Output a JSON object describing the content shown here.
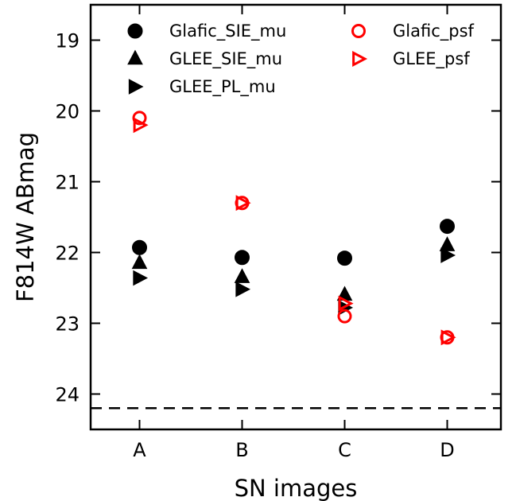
{
  "chart_data": {
    "type": "scatter",
    "xlabel": "SN images",
    "ylabel": "F814W ABmag",
    "categories": [
      "A",
      "B",
      "C",
      "D"
    ],
    "ylim": [
      24.5,
      18.5
    ],
    "y_inverted": true,
    "yticks": [
      19,
      20,
      21,
      22,
      23,
      24
    ],
    "grid": false,
    "legend_placement": "top",
    "reference_line": {
      "y": 24.2,
      "style": "dashed",
      "color": "#000000"
    },
    "series": [
      {
        "name": "Glafic_SIE_mu",
        "marker": "circle",
        "filled": true,
        "color": "#000000",
        "values": [
          21.93,
          22.07,
          22.08,
          21.63
        ]
      },
      {
        "name": "GLEE_SIE_mu",
        "marker": "triangle-up",
        "filled": true,
        "color": "#000000",
        "values": [
          22.15,
          22.35,
          22.6,
          21.9
        ]
      },
      {
        "name": "GLEE_PL_mu",
        "marker": "triangle-right",
        "filled": true,
        "color": "#000000",
        "values": [
          22.36,
          22.52,
          22.78,
          22.04
        ]
      },
      {
        "name": "Glafic_psf",
        "marker": "circle",
        "filled": false,
        "color": "#ff0000",
        "values": [
          20.1,
          21.3,
          22.9,
          23.2
        ]
      },
      {
        "name": "GLEE_psf",
        "marker": "triangle-right",
        "filled": false,
        "color": "#ff0000",
        "values": [
          20.2,
          21.3,
          22.72,
          23.2
        ]
      }
    ]
  }
}
